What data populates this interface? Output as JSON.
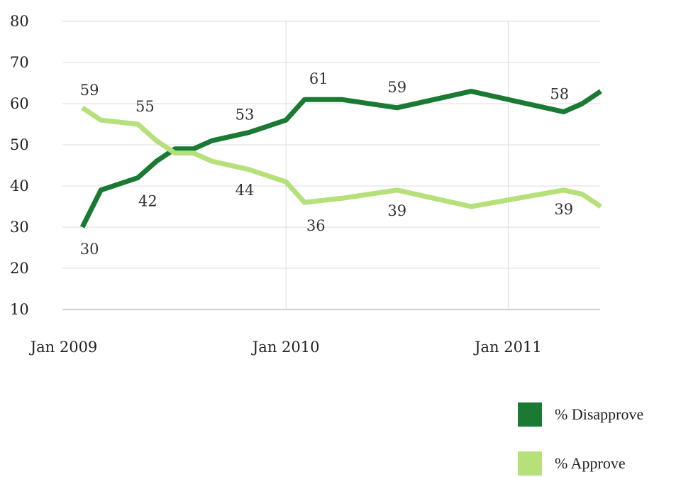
{
  "chart_data": {
    "type": "line",
    "title": "",
    "xlabel": "",
    "ylabel": "",
    "ylim": [
      10,
      80
    ],
    "yticks": [
      10,
      20,
      30,
      40,
      50,
      60,
      70,
      80
    ],
    "xlim": [
      "2009-01",
      "2011-06"
    ],
    "xticks": [
      {
        "label": "Jan 2009",
        "date": "2009-01"
      },
      {
        "label": "Jan 2010",
        "date": "2010-01"
      },
      {
        "label": "Jan 2011",
        "date": "2011-01"
      }
    ],
    "grid": true,
    "legend_position": "bottom-right",
    "series": [
      {
        "name": "% Disapprove",
        "color": "#1a7a34",
        "points": [
          {
            "x": "2009-02",
            "y": 30
          },
          {
            "x": "2009-03",
            "y": 39
          },
          {
            "x": "2009-05",
            "y": 42
          },
          {
            "x": "2009-06",
            "y": 46
          },
          {
            "x": "2009-07",
            "y": 49
          },
          {
            "x": "2009-08",
            "y": 49
          },
          {
            "x": "2009-09",
            "y": 51
          },
          {
            "x": "2009-11",
            "y": 53
          },
          {
            "x": "2010-01",
            "y": 56
          },
          {
            "x": "2010-02",
            "y": 61
          },
          {
            "x": "2010-04",
            "y": 61
          },
          {
            "x": "2010-07",
            "y": 59
          },
          {
            "x": "2010-11",
            "y": 63
          },
          {
            "x": "2011-04",
            "y": 58
          },
          {
            "x": "2011-05",
            "y": 60
          },
          {
            "x": "2011-06",
            "y": 63
          }
        ],
        "labels": [
          {
            "x": "2009-02",
            "y": 30,
            "text": "30"
          },
          {
            "x": "2009-05",
            "y": 42,
            "text": "42"
          },
          {
            "x": "2009-11",
            "y": 53,
            "text": "53"
          },
          {
            "x": "2010-02",
            "y": 61,
            "text": "61"
          },
          {
            "x": "2010-07",
            "y": 59,
            "text": "59"
          },
          {
            "x": "2011-04",
            "y": 58,
            "text": "58"
          }
        ]
      },
      {
        "name": "% Approve",
        "color": "#b5e07a",
        "points": [
          {
            "x": "2009-02",
            "y": 59
          },
          {
            "x": "2009-03",
            "y": 56
          },
          {
            "x": "2009-05",
            "y": 55
          },
          {
            "x": "2009-06",
            "y": 51
          },
          {
            "x": "2009-07",
            "y": 48
          },
          {
            "x": "2009-08",
            "y": 48
          },
          {
            "x": "2009-09",
            "y": 46
          },
          {
            "x": "2009-11",
            "y": 44
          },
          {
            "x": "2010-01",
            "y": 41
          },
          {
            "x": "2010-02",
            "y": 36
          },
          {
            "x": "2010-04",
            "y": 37
          },
          {
            "x": "2010-07",
            "y": 39
          },
          {
            "x": "2010-11",
            "y": 35
          },
          {
            "x": "2011-04",
            "y": 39
          },
          {
            "x": "2011-05",
            "y": 38
          },
          {
            "x": "2011-06",
            "y": 35
          }
        ],
        "labels": [
          {
            "x": "2009-02",
            "y": 59,
            "text": "59"
          },
          {
            "x": "2009-05",
            "y": 55,
            "text": "55"
          },
          {
            "x": "2009-11",
            "y": 44,
            "text": "44"
          },
          {
            "x": "2010-02",
            "y": 36,
            "text": "36"
          },
          {
            "x": "2010-07",
            "y": 39,
            "text": "39"
          },
          {
            "x": "2011-04",
            "y": 39,
            "text": "39"
          }
        ]
      }
    ]
  }
}
